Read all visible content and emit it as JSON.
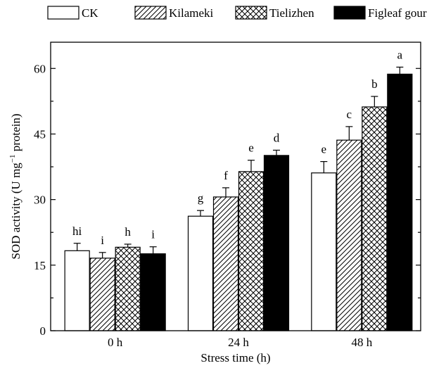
{
  "chart_data": {
    "type": "bar",
    "categories": [
      "0 h",
      "24 h",
      "48 h"
    ],
    "series": [
      {
        "name": "CK",
        "pattern": "none",
        "values": [
          18.3,
          26.2,
          36.1
        ],
        "errors": [
          1.7,
          1.3,
          2.6
        ],
        "letters": [
          "hi",
          "g",
          "e"
        ]
      },
      {
        "name": "Kilameki",
        "pattern": "hatch",
        "values": [
          16.6,
          30.6,
          43.6
        ],
        "errors": [
          1.3,
          2.1,
          3.1
        ],
        "letters": [
          "i",
          "f",
          "c"
        ]
      },
      {
        "name": "Tielizhen",
        "pattern": "crosshatch",
        "values": [
          19.1,
          36.4,
          51.2
        ],
        "errors": [
          0.7,
          2.6,
          2.4
        ],
        "letters": [
          "h",
          "e",
          "b"
        ]
      },
      {
        "name": "Figleaf gourd",
        "pattern": "solid",
        "values": [
          17.6,
          40.1,
          58.7
        ],
        "errors": [
          1.6,
          1.2,
          1.6
        ],
        "letters": [
          "i",
          "d",
          "a"
        ]
      }
    ],
    "xlabel": "Stress time (h)",
    "ylabel": "SOD activity (U mg",
    "ylabel_sup": "−1",
    "ylabel_tail": " protein)",
    "ylim": [
      0,
      66
    ],
    "yticks": [
      0,
      15,
      30,
      45,
      60
    ],
    "legend_position": "top",
    "grid": false,
    "colors": {
      "fill": "#000000",
      "background": "#ffffff"
    }
  }
}
